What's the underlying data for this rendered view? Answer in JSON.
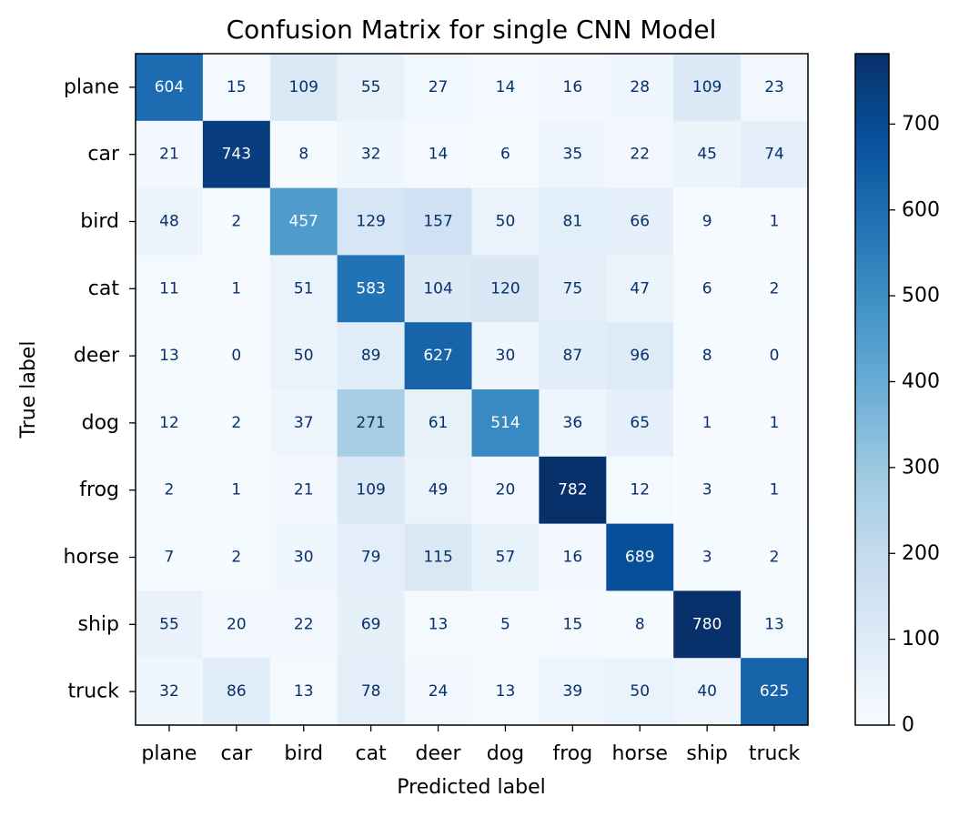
{
  "chart_data": {
    "type": "heatmap",
    "title": "Confusion Matrix for single CNN Model",
    "xlabel": "Predicted label",
    "ylabel": "True label",
    "x_categories": [
      "plane",
      "car",
      "bird",
      "cat",
      "deer",
      "dog",
      "frog",
      "horse",
      "ship",
      "truck"
    ],
    "y_categories": [
      "plane",
      "car",
      "bird",
      "cat",
      "deer",
      "dog",
      "frog",
      "horse",
      "ship",
      "truck"
    ],
    "values": [
      [
        604,
        15,
        109,
        55,
        27,
        14,
        16,
        28,
        109,
        23
      ],
      [
        21,
        743,
        8,
        32,
        14,
        6,
        35,
        22,
        45,
        74
      ],
      [
        48,
        2,
        457,
        129,
        157,
        50,
        81,
        66,
        9,
        1
      ],
      [
        11,
        1,
        51,
        583,
        104,
        120,
        75,
        47,
        6,
        2
      ],
      [
        13,
        0,
        50,
        89,
        627,
        30,
        87,
        96,
        8,
        0
      ],
      [
        12,
        2,
        37,
        271,
        61,
        514,
        36,
        65,
        1,
        1
      ],
      [
        2,
        1,
        21,
        109,
        49,
        20,
        782,
        12,
        3,
        1
      ],
      [
        7,
        2,
        30,
        79,
        115,
        57,
        16,
        689,
        3,
        2
      ],
      [
        55,
        20,
        22,
        69,
        13,
        5,
        15,
        8,
        780,
        13
      ],
      [
        32,
        86,
        13,
        78,
        24,
        13,
        39,
        50,
        40,
        625
      ]
    ],
    "colormap": "Blues",
    "color_range": [
      0,
      782
    ],
    "colorbar_ticks": [
      0,
      100,
      200,
      300,
      400,
      500,
      600,
      700
    ],
    "text_color_light": "#ffffff",
    "text_color_dark": "#08306b"
  }
}
